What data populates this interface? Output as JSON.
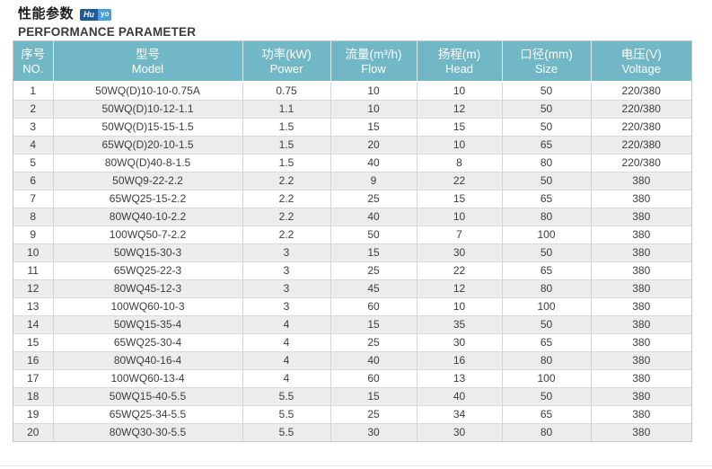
{
  "page": {
    "title_zh": "性能参数",
    "subtitle_en": "PERFORMANCE PARAMETER",
    "brand": {
      "part1": "Hu",
      "part2": "yo"
    }
  },
  "colors": {
    "header_bg": "#71b7c5",
    "row_alt_bg": "#ececec",
    "brand_dark_blue": "#1d5c9c",
    "brand_light_blue": "#49a0d5",
    "body_text": "#3d3d3d"
  },
  "table": {
    "columns": [
      {
        "key": "no",
        "zh": "序号",
        "en": "NO."
      },
      {
        "key": "model",
        "zh": "型号",
        "en": "Model"
      },
      {
        "key": "power",
        "zh": "功率(kW)",
        "en": "Power"
      },
      {
        "key": "flow",
        "zh": "流量(m³/h)",
        "en": "Flow"
      },
      {
        "key": "head",
        "zh": "扬程(m)",
        "en": "Head"
      },
      {
        "key": "size",
        "zh": "口径(mm)",
        "en": "Size"
      },
      {
        "key": "voltage",
        "zh": "电压(V)",
        "en": "Voltage"
      }
    ],
    "rows": [
      [
        "1",
        "50WQ(D)10-10-0.75A",
        "0.75",
        "10",
        "10",
        "50",
        "220/380"
      ],
      [
        "2",
        "50WQ(D)10-12-1.1",
        "1.1",
        "10",
        "12",
        "50",
        "220/380"
      ],
      [
        "3",
        "50WQ(D)15-15-1.5",
        "1.5",
        "15",
        "15",
        "50",
        "220/380"
      ],
      [
        "4",
        "65WQ(D)20-10-1.5",
        "1.5",
        "20",
        "10",
        "65",
        "220/380"
      ],
      [
        "5",
        "80WQ(D)40-8-1.5",
        "1.5",
        "40",
        "8",
        "80",
        "220/380"
      ],
      [
        "6",
        "50WQ9-22-2.2",
        "2.2",
        "9",
        "22",
        "50",
        "380"
      ],
      [
        "7",
        "65WQ25-15-2.2",
        "2.2",
        "25",
        "15",
        "65",
        "380"
      ],
      [
        "8",
        "80WQ40-10-2.2",
        "2.2",
        "40",
        "10",
        "80",
        "380"
      ],
      [
        "9",
        "100WQ50-7-2.2",
        "2.2",
        "50",
        "7",
        "100",
        "380"
      ],
      [
        "10",
        "50WQ15-30-3",
        "3",
        "15",
        "30",
        "50",
        "380"
      ],
      [
        "11",
        "65WQ25-22-3",
        "3",
        "25",
        "22",
        "65",
        "380"
      ],
      [
        "12",
        "80WQ45-12-3",
        "3",
        "45",
        "12",
        "80",
        "380"
      ],
      [
        "13",
        "100WQ60-10-3",
        "3",
        "60",
        "10",
        "100",
        "380"
      ],
      [
        "14",
        "50WQ15-35-4",
        "4",
        "15",
        "35",
        "50",
        "380"
      ],
      [
        "15",
        "65WQ25-30-4",
        "4",
        "25",
        "30",
        "65",
        "380"
      ],
      [
        "16",
        "80WQ40-16-4",
        "4",
        "40",
        "16",
        "80",
        "380"
      ],
      [
        "17",
        "100WQ60-13-4",
        "4",
        "60",
        "13",
        "100",
        "380"
      ],
      [
        "18",
        "50WQ15-40-5.5",
        "5.5",
        "15",
        "40",
        "50",
        "380"
      ],
      [
        "19",
        "65WQ25-34-5.5",
        "5.5",
        "25",
        "34",
        "65",
        "380"
      ],
      [
        "20",
        "80WQ30-30-5.5",
        "5.5",
        "30",
        "30",
        "80",
        "380"
      ]
    ]
  }
}
